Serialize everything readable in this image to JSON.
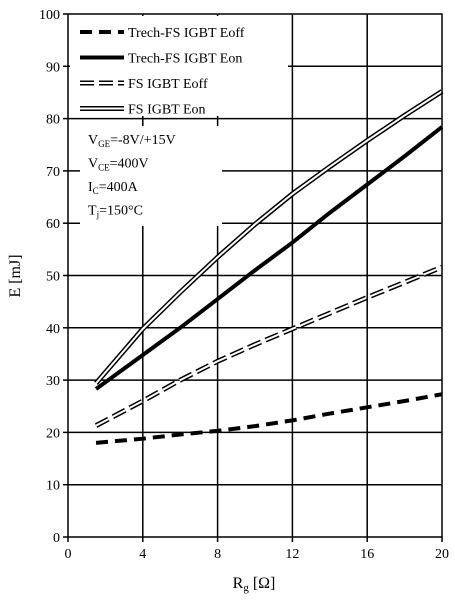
{
  "chart_data": {
    "type": "line",
    "xlabel": "R",
    "xlabel_sub": "g",
    "xlabel_unit": " [Ω]",
    "ylabel": "E [mJ]",
    "xlim": [
      0,
      20
    ],
    "ylim": [
      0,
      100
    ],
    "x_ticks": [
      "0",
      "4",
      "8",
      "12",
      "16",
      "20"
    ],
    "y_ticks": [
      "0",
      "10",
      "20",
      "30",
      "40",
      "50",
      "60",
      "70",
      "80",
      "90",
      "100"
    ],
    "grid": true,
    "legend_position": "top-left",
    "series": [
      {
        "name": "Trech-FS IGBT Eoff",
        "style": "thick-dashed",
        "color": "#000000",
        "points": [
          [
            1.5,
            18.0
          ],
          [
            4,
            18.8
          ],
          [
            6,
            19.6
          ],
          [
            8,
            20.3
          ],
          [
            10,
            21.2
          ],
          [
            12,
            22.3
          ],
          [
            14,
            23.6
          ],
          [
            16,
            24.8
          ],
          [
            18,
            26.0
          ],
          [
            20,
            27.3
          ]
        ]
      },
      {
        "name": "Trech-FS IGBT Eon",
        "style": "thick-solid",
        "color": "#000000",
        "points": [
          [
            1.5,
            28.3
          ],
          [
            4,
            34.8
          ],
          [
            6,
            40.0
          ],
          [
            8,
            45.5
          ],
          [
            10,
            51.0
          ],
          [
            12,
            56.3
          ],
          [
            14,
            62.0
          ],
          [
            16,
            67.4
          ],
          [
            18,
            72.8
          ],
          [
            20,
            78.4
          ]
        ]
      },
      {
        "name": "FS IGBT Eoff",
        "style": "double-dashed",
        "color": "#000000",
        "points": [
          [
            1.5,
            21.3
          ],
          [
            4,
            26.0
          ],
          [
            6,
            30.0
          ],
          [
            8,
            33.6
          ],
          [
            10,
            36.8
          ],
          [
            12,
            39.8
          ],
          [
            14,
            42.8
          ],
          [
            16,
            45.8
          ],
          [
            18,
            48.7
          ],
          [
            20,
            51.6
          ]
        ]
      },
      {
        "name": "FS IGBT Eon",
        "style": "double-solid",
        "color": "#000000",
        "points": [
          [
            1.5,
            29.4
          ],
          [
            4,
            39.8
          ],
          [
            6,
            46.8
          ],
          [
            8,
            53.5
          ],
          [
            10,
            59.8
          ],
          [
            12,
            65.6
          ],
          [
            14,
            70.8
          ],
          [
            16,
            75.8
          ],
          [
            18,
            80.6
          ],
          [
            20,
            85.2
          ]
        ]
      }
    ],
    "conditions": [
      {
        "main": "V",
        "sub": "GE",
        "rest": "=-8V/+15V"
      },
      {
        "main": "V",
        "sub": "CE",
        "rest": "=400V"
      },
      {
        "main": "I",
        "sub": "C",
        "rest": "=400A"
      },
      {
        "main": "T",
        "sub": "j",
        "rest": "=150°C"
      }
    ]
  }
}
